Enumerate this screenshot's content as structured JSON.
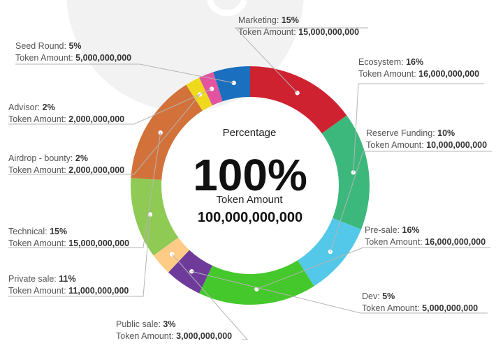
{
  "chart_data": {
    "type": "pie",
    "style": "donut",
    "center": {
      "title": "Percentage",
      "percent": "100%",
      "amount_label": "Token Amount",
      "amount_value": "100,000,000,000"
    },
    "amount_prefix": "Token Amount: ",
    "slices": [
      {
        "name": "Marketing",
        "value": 15,
        "percent_label": "15%",
        "amount": "15,000,000,000",
        "color": "#cf2230"
      },
      {
        "name": "Ecosystem",
        "value": 16,
        "percent_label": "16%",
        "amount": "16,000,000,000",
        "color": "#3db87c"
      },
      {
        "name": "Reserve Funding",
        "value": 10,
        "percent_label": "10%",
        "amount": "10,000,000,000",
        "color": "#54c8e8"
      },
      {
        "name": "Pre-sale",
        "value": 16,
        "percent_label": "16%",
        "amount": "16,000,000,000",
        "color": "#45c82b"
      },
      {
        "name": "Dev",
        "value": 5,
        "percent_label": "5%",
        "amount": "5,000,000,000",
        "color": "#6e3b9b"
      },
      {
        "name": "Public sale",
        "value": 3,
        "percent_label": "3%",
        "amount": "3,000,000,000",
        "color": "#ffcc88"
      },
      {
        "name": "Private sale",
        "value": 11,
        "percent_label": "11%",
        "amount": "11,000,000,000",
        "color": "#8fca55"
      },
      {
        "name": "Technical",
        "value": 15,
        "percent_label": "15%",
        "amount": "15,000,000,000",
        "color": "#d2723a"
      },
      {
        "name": "Airdrop - bounty",
        "value": 2,
        "percent_label": "2%",
        "amount": "2,000,000,000",
        "color": "#eed91d"
      },
      {
        "name": "Advisor",
        "value": 2,
        "percent_label": "2%",
        "amount": "2,000,000,000",
        "color": "#e2549f"
      },
      {
        "name": "Seed Round",
        "value": 5,
        "percent_label": "5%",
        "amount": "5,000,000,000",
        "color": "#1a6fbe"
      }
    ]
  }
}
